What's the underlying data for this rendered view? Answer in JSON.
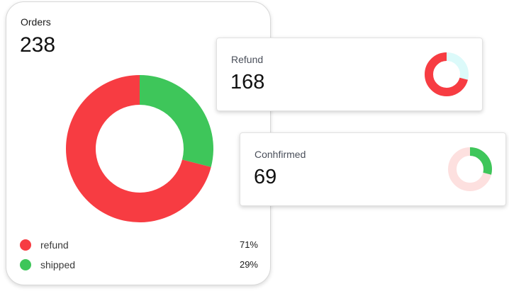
{
  "orders": {
    "title": "Orders",
    "count": "238",
    "chart": {
      "segments": [
        {
          "name": "refund",
          "value": 71,
          "color": "#f73c42"
        },
        {
          "name": "shipped",
          "value": 29,
          "color": "#3ec65a"
        }
      ]
    },
    "legend": [
      {
        "label": "refund",
        "value": "71%",
        "color": "#f73c42"
      },
      {
        "label": "shipped",
        "value": "29%",
        "color": "#3ec65a"
      }
    ]
  },
  "refund_card": {
    "label": "Refund",
    "value": "168",
    "fraction": 0.71,
    "fill_color": "#f73c42",
    "track_color": "#dcfafa"
  },
  "confirmed_card": {
    "label": "Conhfirmed",
    "value": "69",
    "fraction": 0.29,
    "fill_color": "#3ec65a",
    "track_color": "#fde0df"
  }
}
